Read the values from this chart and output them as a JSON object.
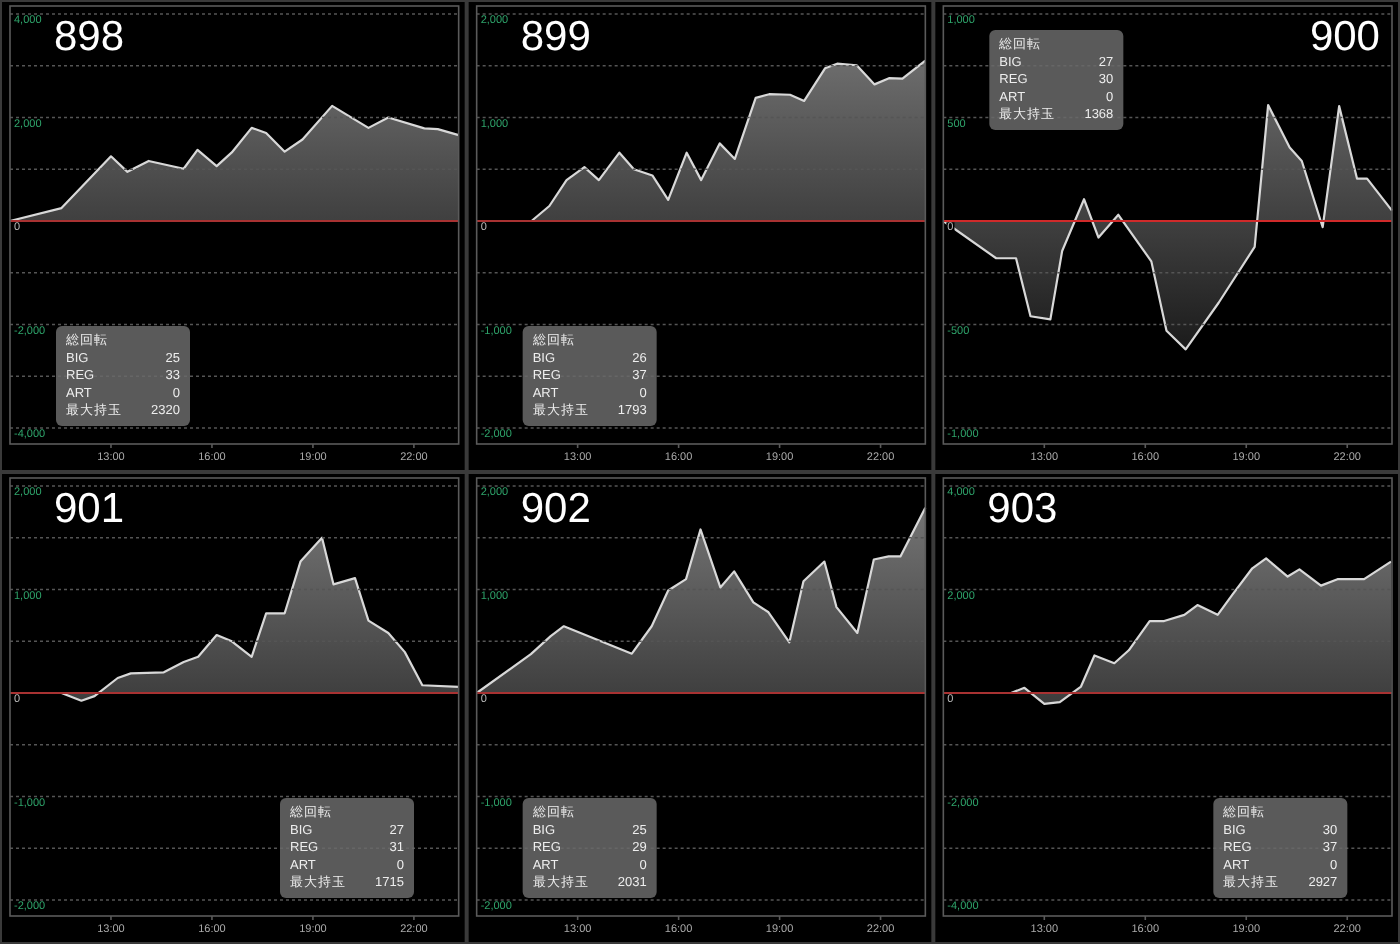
{
  "chart_data": [
    {
      "type": "area",
      "title": "898",
      "color": "#d8d8d8",
      "grid": "y",
      "xlim": [
        10,
        23.33
      ],
      "xticks": [
        {
          "value": 13,
          "label": "13:00"
        },
        {
          "value": 16,
          "label": "16:00"
        },
        {
          "value": 19,
          "label": "19:00"
        },
        {
          "value": 22,
          "label": "22:00"
        }
      ],
      "ylim": [
        -4000,
        4000
      ],
      "yticks": [
        {
          "value": 4000,
          "label": "4,000"
        },
        {
          "value": 3000,
          "label": null
        },
        {
          "value": 2000,
          "label": "2,000"
        },
        {
          "value": 1000,
          "label": null
        },
        0,
        {
          "value": -1000,
          "label": null
        },
        {
          "value": -2000,
          "label": "-2,000"
        },
        {
          "value": -3000,
          "label": null
        },
        {
          "value": -4000,
          "label": "-4,000"
        }
      ],
      "ref_lines": [
        {
          "axis": "y",
          "value": 0,
          "color": "#a83232"
        }
      ],
      "x": [
        10,
        11.53,
        13.0,
        13.49,
        14.12,
        15.16,
        15.57,
        16.14,
        16.59,
        17.18,
        17.61,
        18.16,
        18.69,
        19.57,
        20.65,
        21.24,
        22.31,
        22.71,
        23.33
      ],
      "values": [
        0,
        250,
        1250,
        950,
        1160,
        1010,
        1375,
        1060,
        1325,
        1800,
        1700,
        1340,
        1575,
        2225,
        1800,
        2000,
        1790,
        1775,
        1660
      ],
      "annotations": [
        "総回転",
        "BIG",
        "25",
        "REG",
        "33",
        "ART",
        "0",
        "最大持玉",
        "2320"
      ]
    },
    {
      "type": "area",
      "title": "899",
      "color": "#d8d8d8",
      "grid": "y",
      "xlim": [
        10,
        23.33
      ],
      "xticks": [
        {
          "value": 13,
          "label": "13:00"
        },
        {
          "value": 16,
          "label": "16:00"
        },
        {
          "value": 19,
          "label": "19:00"
        },
        {
          "value": 22,
          "label": "22:00"
        }
      ],
      "ylim": [
        -2000,
        2000
      ],
      "yticks": [
        {
          "value": 2000,
          "label": "2,000"
        },
        {
          "value": 1500,
          "label": null
        },
        {
          "value": 1000,
          "label": "1,000"
        },
        {
          "value": 500,
          "label": null
        },
        0,
        {
          "value": -500,
          "label": null
        },
        {
          "value": -1000,
          "label": "-1,000"
        },
        {
          "value": -1500,
          "label": null
        },
        {
          "value": -2000,
          "label": "-2,000"
        }
      ],
      "ref_lines": [
        {
          "axis": "y",
          "value": 0,
          "color": "#a83232"
        }
      ],
      "x": [
        10,
        11.63,
        12.16,
        12.67,
        13.2,
        13.63,
        14.24,
        14.67,
        15.22,
        15.69,
        16.24,
        16.67,
        17.22,
        17.67,
        18.29,
        18.69,
        19.31,
        19.73,
        20.35,
        20.71,
        21.29,
        21.82,
        22.25,
        22.65,
        23.33
      ],
      "values": [
        0,
        0,
        145,
        395,
        520,
        395,
        660,
        500,
        440,
        205,
        660,
        395,
        750,
        600,
        1190,
        1225,
        1220,
        1160,
        1475,
        1520,
        1505,
        1320,
        1380,
        1375,
        1550
      ],
      "annotations": [
        "総回転",
        "BIG",
        "26",
        "REG",
        "37",
        "ART",
        "0",
        "最大持玉",
        "1793"
      ]
    },
    {
      "type": "area",
      "title": "900",
      "color": "#d8d8d8",
      "grid": "y",
      "xlim": [
        10,
        23.33
      ],
      "xticks": [
        {
          "value": 13,
          "label": "13:00"
        },
        {
          "value": 16,
          "label": "16:00"
        },
        {
          "value": 19,
          "label": "19:00"
        },
        {
          "value": 22,
          "label": "22:00"
        }
      ],
      "ylim": [
        -1000,
        1000
      ],
      "yticks": [
        {
          "value": 1000,
          "label": "1,000"
        },
        {
          "value": 750,
          "label": null
        },
        500,
        {
          "value": 250,
          "label": null
        },
        0,
        {
          "value": -250,
          "label": null
        },
        -500,
        {
          "value": -750,
          "label": null
        },
        {
          "value": -1000,
          "label": "-1,000"
        }
      ],
      "ref_lines": [
        {
          "axis": "y",
          "value": 0,
          "color": "#d02a2a"
        }
      ],
      "x": [
        10,
        11.57,
        12.16,
        12.59,
        13.18,
        13.53,
        14.18,
        14.61,
        15.2,
        16.18,
        16.63,
        17.2,
        18.18,
        19.25,
        19.65,
        20.29,
        20.65,
        21.27,
        21.76,
        22.29,
        22.59,
        23.33
      ],
      "values": [
        0,
        -180,
        -180,
        -460,
        -475,
        -145,
        105,
        -80,
        30,
        -195,
        -530,
        -620,
        -395,
        -125,
        560,
        355,
        290,
        -30,
        555,
        205,
        205,
        50
      ],
      "annotations": [
        "総回転",
        "BIG",
        "27",
        "REG",
        "30",
        "ART",
        "0",
        "最大持玉",
        "1368"
      ]
    },
    {
      "type": "area",
      "title": "901",
      "color": "#d8d8d8",
      "grid": "y",
      "xlim": [
        10,
        23.33
      ],
      "xticks": [
        {
          "value": 13,
          "label": "13:00"
        },
        {
          "value": 16,
          "label": "16:00"
        },
        {
          "value": 19,
          "label": "19:00"
        },
        {
          "value": 22,
          "label": "22:00"
        }
      ],
      "ylim": [
        -2000,
        2000
      ],
      "yticks": [
        {
          "value": 2000,
          "label": "2,000"
        },
        {
          "value": 1500,
          "label": null
        },
        {
          "value": 1000,
          "label": "1,000"
        },
        {
          "value": 500,
          "label": null
        },
        0,
        {
          "value": -500,
          "label": null
        },
        {
          "value": -1000,
          "label": "-1,000"
        },
        {
          "value": -1500,
          "label": null
        },
        {
          "value": -2000,
          "label": "-2,000"
        }
      ],
      "ref_lines": [
        {
          "axis": "y",
          "value": 0,
          "color": "#a83232"
        }
      ],
      "x": [
        10,
        11.53,
        12.12,
        12.51,
        13.2,
        13.59,
        14.57,
        15.16,
        15.59,
        16.14,
        16.59,
        17.18,
        17.61,
        18.16,
        18.63,
        19.27,
        19.61,
        20.25,
        20.65,
        21.24,
        21.73,
        22.25,
        23.33
      ],
      "values": [
        0,
        0,
        -75,
        -30,
        145,
        190,
        200,
        300,
        350,
        560,
        500,
        350,
        770,
        770,
        1270,
        1500,
        1050,
        1110,
        700,
        580,
        395,
        75,
        60
      ],
      "annotations": [
        "総回転",
        "BIG",
        "27",
        "REG",
        "31",
        "ART",
        "0",
        "最大持玉",
        "1715"
      ]
    },
    {
      "type": "area",
      "title": "902",
      "color": "#d8d8d8",
      "grid": "y",
      "xlim": [
        10,
        23.33
      ],
      "xticks": [
        {
          "value": 13,
          "label": "13:00"
        },
        {
          "value": 16,
          "label": "16:00"
        },
        {
          "value": 19,
          "label": "19:00"
        },
        {
          "value": 22,
          "label": "22:00"
        }
      ],
      "ylim": [
        -2000,
        2000
      ],
      "yticks": [
        {
          "value": 2000,
          "label": "2,000"
        },
        {
          "value": 1500,
          "label": null
        },
        {
          "value": 1000,
          "label": "1,000"
        },
        {
          "value": 500,
          "label": null
        },
        0,
        {
          "value": -500,
          "label": null
        },
        {
          "value": -1000,
          "label": "-1,000"
        },
        {
          "value": -1500,
          "label": null
        },
        {
          "value": -2000,
          "label": "-2,000"
        }
      ],
      "ref_lines": [
        {
          "axis": "y",
          "value": 0,
          "color": "#a83232"
        }
      ],
      "x": [
        10,
        11.61,
        12.2,
        12.59,
        14.61,
        15.2,
        15.69,
        16.22,
        16.65,
        17.24,
        17.65,
        18.22,
        18.67,
        19.29,
        19.71,
        20.33,
        20.69,
        21.31,
        21.8,
        22.24,
        22.59,
        23.33
      ],
      "values": [
        0,
        375,
        550,
        645,
        380,
        645,
        990,
        1100,
        1580,
        1020,
        1175,
        875,
        780,
        490,
        1080,
        1270,
        830,
        580,
        1290,
        1320,
        1320,
        1790
      ],
      "annotations": [
        "総回転",
        "BIG",
        "25",
        "REG",
        "29",
        "ART",
        "0",
        "最大持玉",
        "2031"
      ]
    },
    {
      "type": "area",
      "title": "903",
      "color": "#d8d8d8",
      "grid": "y",
      "xlim": [
        10,
        23.33
      ],
      "xticks": [
        {
          "value": 13,
          "label": "13:00"
        },
        {
          "value": 16,
          "label": "16:00"
        },
        {
          "value": 19,
          "label": "19:00"
        },
        {
          "value": 22,
          "label": "22:00"
        }
      ],
      "ylim": [
        -4000,
        4000
      ],
      "yticks": [
        {
          "value": 4000,
          "label": "4,000"
        },
        {
          "value": 3000,
          "label": null
        },
        {
          "value": 2000,
          "label": "2,000"
        },
        {
          "value": 1000,
          "label": null
        },
        0,
        {
          "value": -1000,
          "label": null
        },
        {
          "value": -2000,
          "label": "-2,000"
        },
        {
          "value": -3000,
          "label": null
        },
        {
          "value": -4000,
          "label": "-4,000"
        }
      ],
      "ref_lines": [
        {
          "axis": "y",
          "value": 0,
          "color": "#a83232"
        }
      ],
      "x": [
        10,
        12.01,
        12.41,
        13,
        13.46,
        14.09,
        14.49,
        15.08,
        15.51,
        16.13,
        16.56,
        17.16,
        17.55,
        18.15,
        18.6,
        19.18,
        19.59,
        20.23,
        20.58,
        21.22,
        21.71,
        22.5,
        23.3
      ],
      "values": [
        0,
        0,
        100,
        -210,
        -175,
        125,
        725,
        575,
        825,
        1390,
        1390,
        1510,
        1700,
        1510,
        1910,
        2410,
        2600,
        2250,
        2390,
        2075,
        2200,
        2200,
        2540
      ],
      "annotations": [
        "総回転",
        "BIG",
        "30",
        "REG",
        "37",
        "ART",
        "0",
        "最大持玉",
        "2927"
      ]
    }
  ]
}
